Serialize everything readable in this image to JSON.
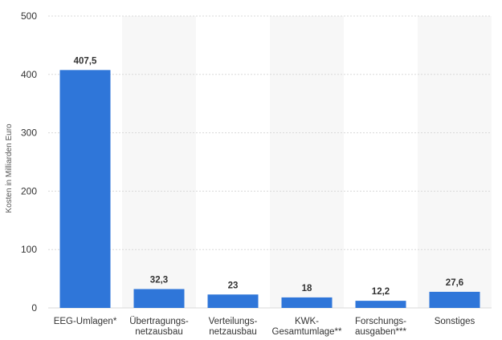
{
  "chart_data": {
    "type": "bar",
    "categories": [
      [
        "EEG-Umlagen*"
      ],
      [
        "Übertragungs-",
        "netzausbau"
      ],
      [
        "Verteilungs-",
        "netzausbau"
      ],
      [
        "KWK-",
        "Gesamtumlage**"
      ],
      [
        "Forschungs-",
        "ausgaben***"
      ],
      [
        "Sonstiges"
      ]
    ],
    "values": [
      407.5,
      32.3,
      23,
      18,
      12.2,
      27.6
    ],
    "value_labels": [
      "407,5",
      "32,3",
      "23",
      "18",
      "12,2",
      "27,6"
    ],
    "ylabel": "Kosten in Milliarden Euro",
    "ylim": [
      0,
      500
    ],
    "yticks": [
      0,
      100,
      200,
      300,
      400,
      500
    ],
    "grid": true,
    "alternating_band_color": "#f7f7f7",
    "bar_color": "#2f76d9",
    "gridline_color": "#d9d9d9"
  }
}
